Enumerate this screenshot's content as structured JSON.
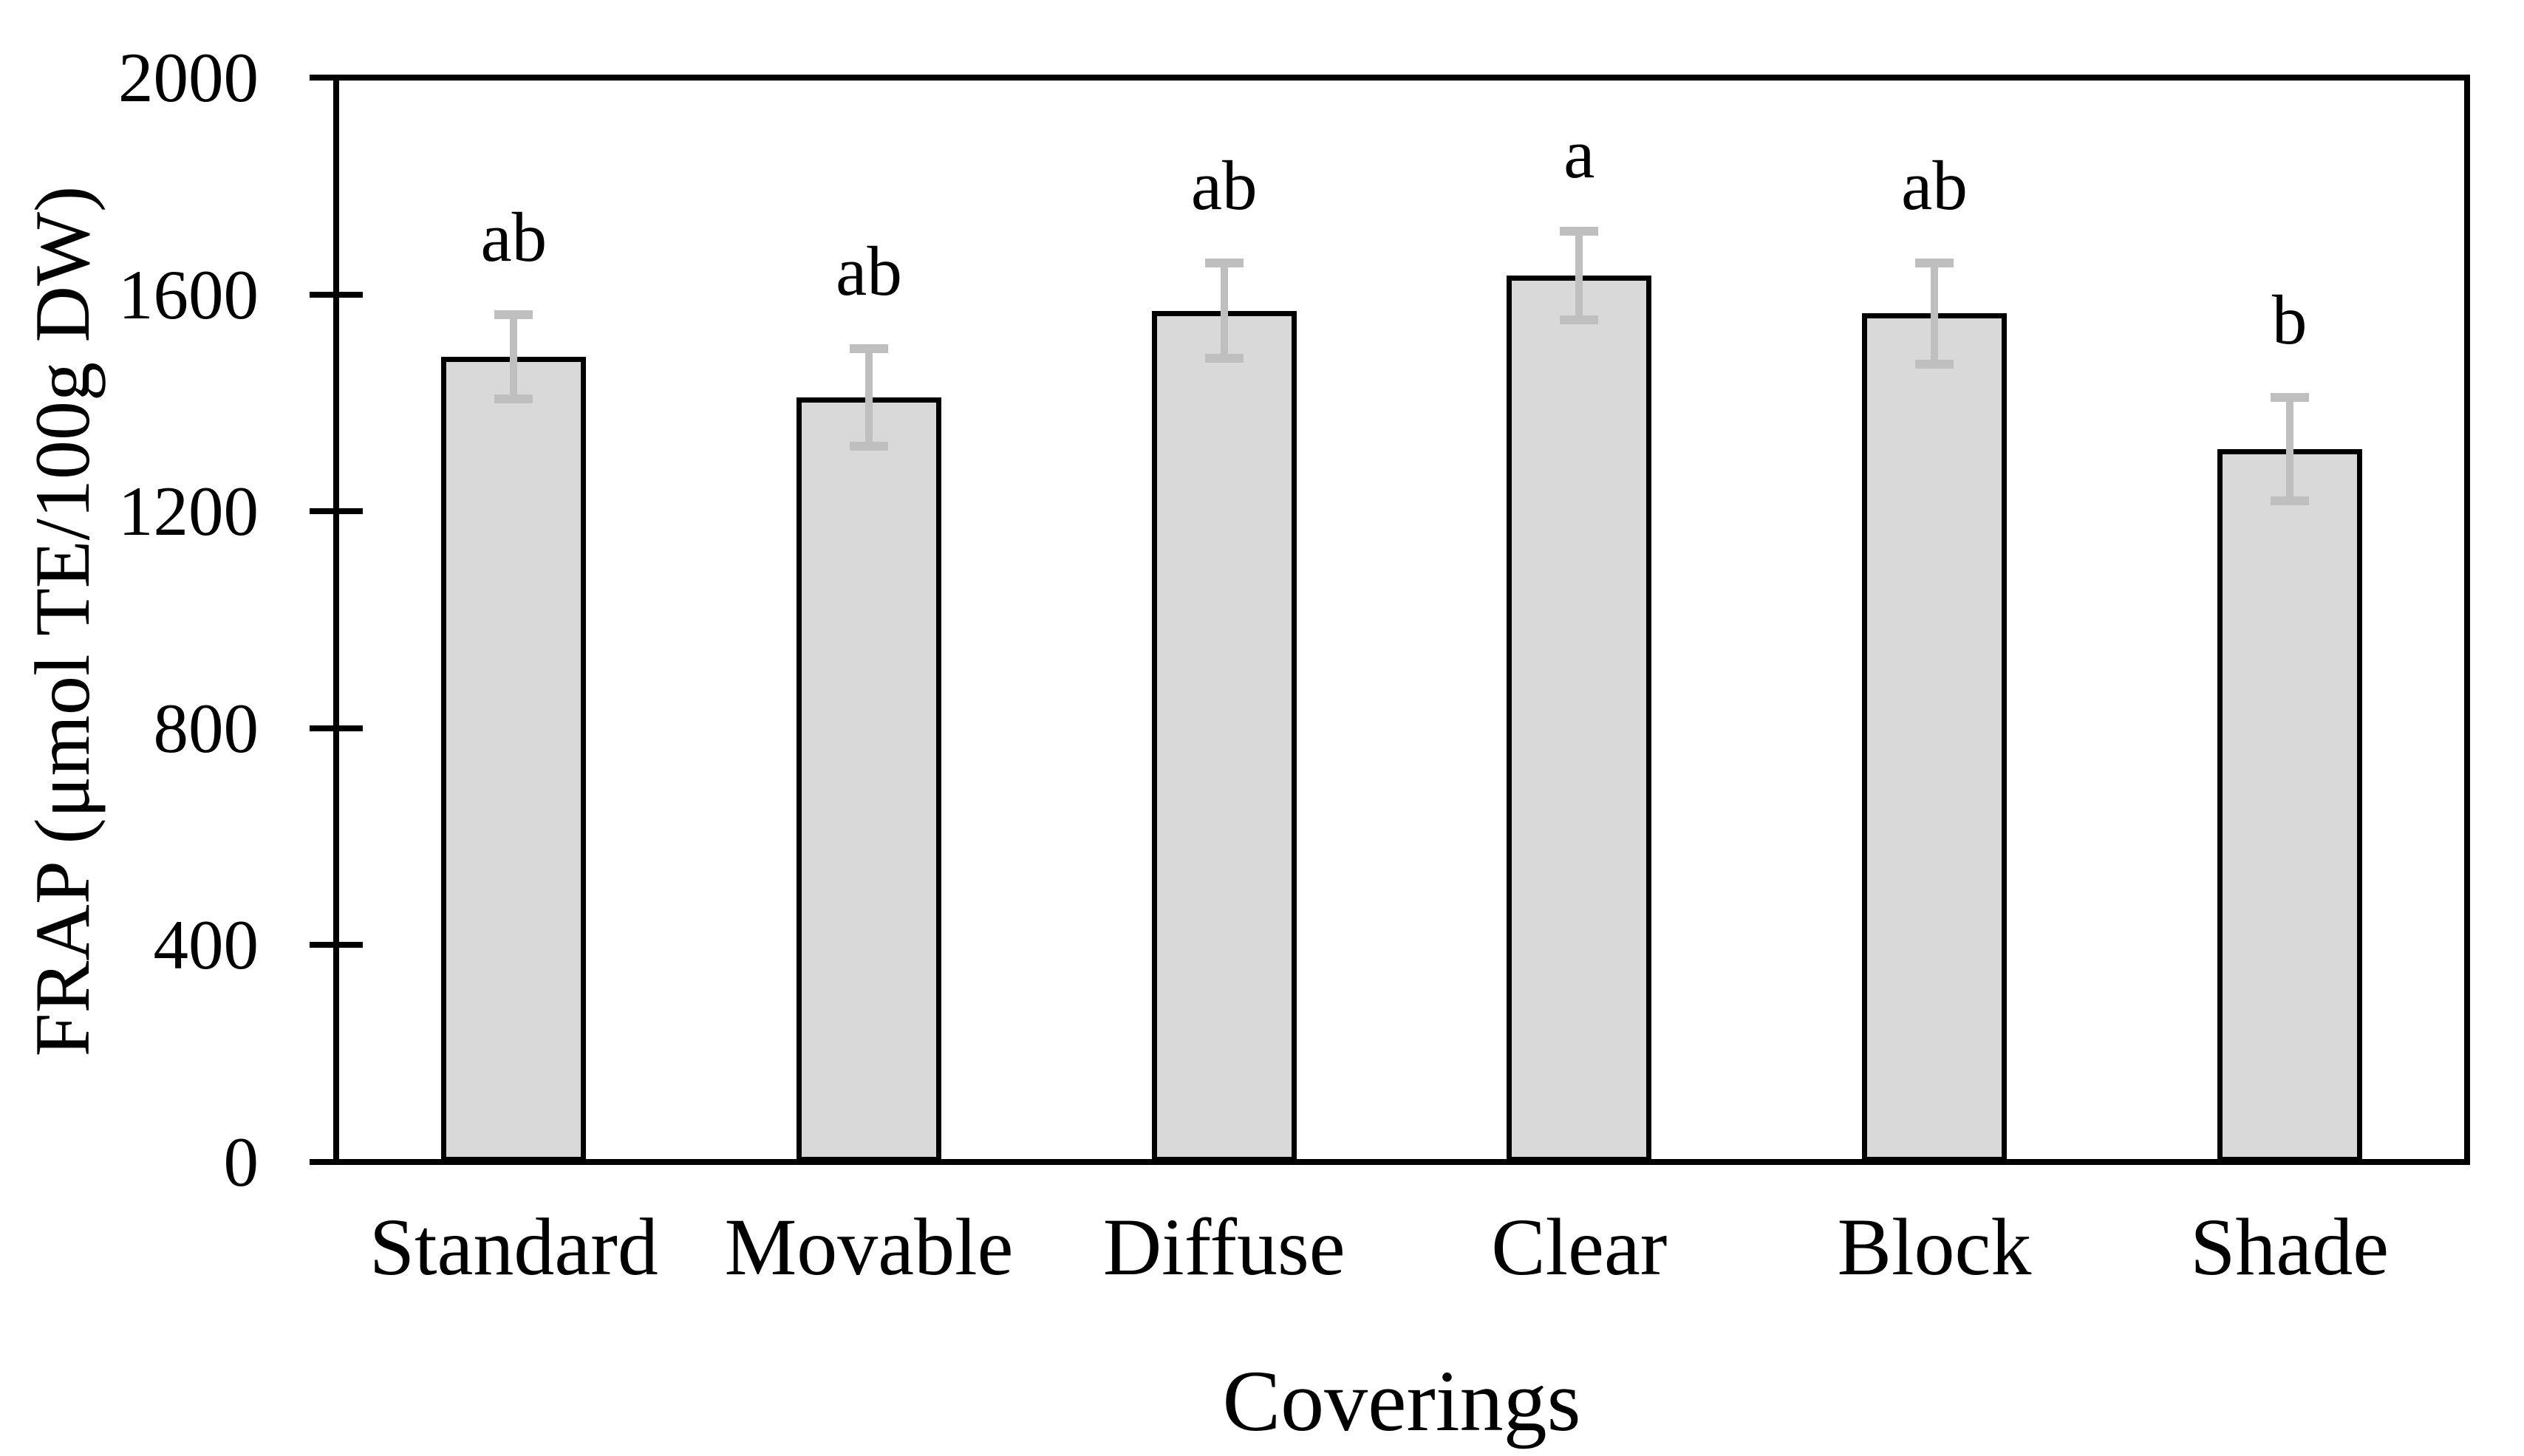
{
  "figure": {
    "background": "#ffffff",
    "bar_fill": "#d9d9d9",
    "bar_border": "#000000",
    "error_bar_color": "#bfbfbf",
    "axis_color": "#000000",
    "text_color": "#000000"
  },
  "chart_data": {
    "type": "bar",
    "title": "",
    "xlabel": "Coverings",
    "ylabel": "FRAP (μmol TE/100g DW)",
    "categories": [
      "Standard",
      "Movable",
      "Diffuse",
      "Clear",
      "Block",
      "Shade"
    ],
    "values": [
      1485,
      1410,
      1570,
      1635,
      1565,
      1315
    ],
    "error_bars": [
      78,
      90,
      88,
      82,
      93,
      95
    ],
    "significance_letters": [
      "ab",
      "ab",
      "ab",
      "a",
      "ab",
      "b"
    ],
    "ylim": [
      0,
      2000
    ],
    "yticks": [
      0,
      400,
      800,
      1200,
      1600,
      2000
    ],
    "grid": false,
    "legend_position": "none",
    "frame": "full-box",
    "tick_style": "cross"
  }
}
